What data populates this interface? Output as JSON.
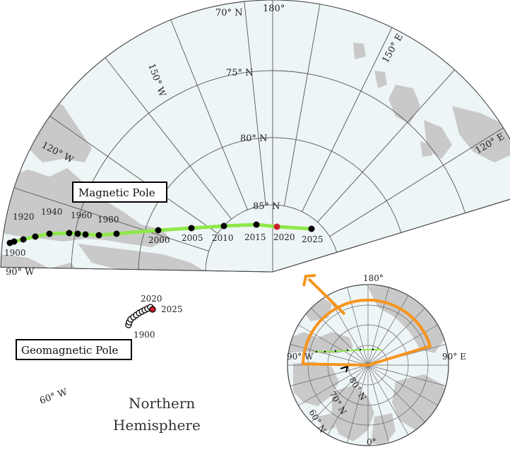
{
  "labels": {
    "magnetic_pole": "Magnetic Pole",
    "geomagnetic_pole": "Geomagnetic Pole",
    "hemisphere_line1": "Northern",
    "hemisphere_line2": "Hemisphere"
  },
  "main_map": {
    "lon_labels": [
      "180°",
      "150° W",
      "120° W",
      "90° W",
      "60° W",
      "150° E",
      "120° E"
    ],
    "lat_labels": [
      "70° N",
      "75° N",
      "80° N",
      "85° N"
    ]
  },
  "magnetic_pole": {
    "line_color": "#8fe84a",
    "dot_color": "#000000",
    "highlight_color": "#cc1f2e",
    "highlight_year": "2020",
    "year_labels": [
      "1900",
      "1920",
      "1940",
      "1960",
      "1980",
      "2000",
      "2005",
      "2010",
      "2015",
      "2020",
      "2025"
    ]
  },
  "geomagnetic_pole": {
    "year_labels": [
      "2020",
      "2025",
      "1900"
    ]
  },
  "inset": {
    "lon_labels": [
      "180°",
      "90° W",
      "90° E",
      "0°"
    ],
    "lat_labels": [
      "80° N",
      "70° N",
      "60° N"
    ],
    "highlight_color": "#f7941d"
  }
}
